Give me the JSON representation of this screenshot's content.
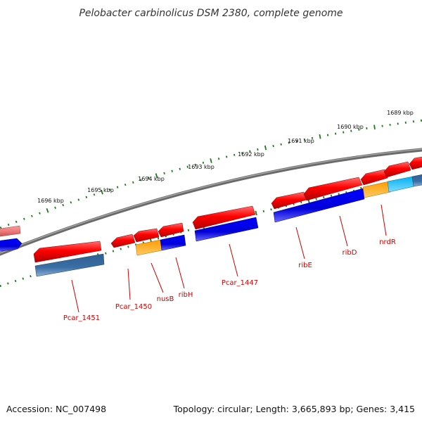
{
  "title": "Pelobacter carbinolicus DSM 2380, complete genome",
  "footer": {
    "accession": "Accession: NC_007498",
    "summary": "Topology: circular; Length: 3,665,893 bp; Genes: 3,415"
  },
  "scale_labels": [
    "1696 kbp",
    "1695 kbp",
    "1694 kbp",
    "1693 kbp",
    "1692 kbp",
    "1691 kbp",
    "1690 kbp",
    "1689 kbp"
  ],
  "gene_labels": [
    "Pcar_1451",
    "Pcar_1450",
    "nusB",
    "ribH",
    "Pcar_1447",
    "ribE",
    "ribD",
    "nrdR"
  ],
  "colors": {
    "forward_gene": "#ff0000",
    "reverse_cog_blue": "#0000dd",
    "reverse_steelblue": "#3a6ea5",
    "orange": "#ff9900",
    "cyan": "#00b0f0",
    "salmon": "#f08080",
    "backbone": "#7f7f7f",
    "ticks": "#1a7a1a",
    "label": "#cc0000"
  }
}
